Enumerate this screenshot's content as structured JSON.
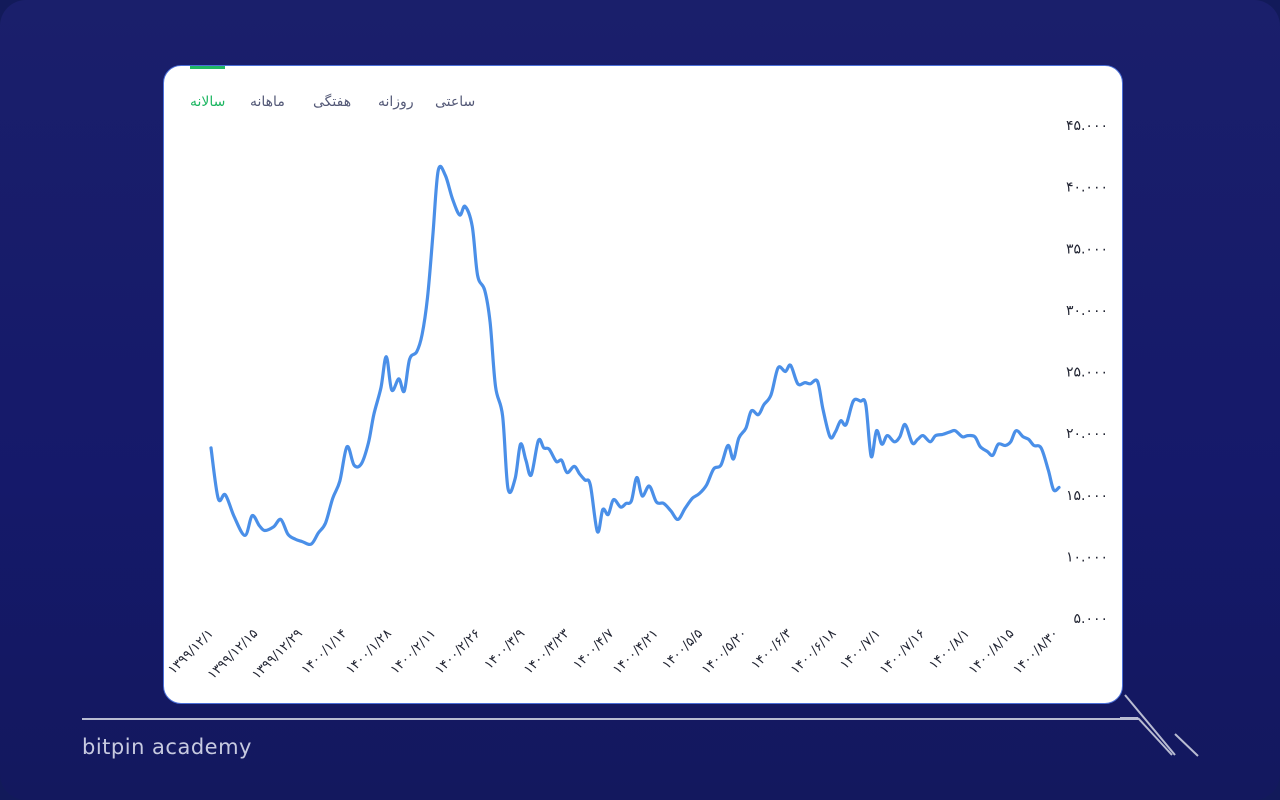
{
  "tabs": [
    {
      "label": "سالانه",
      "active": true
    },
    {
      "label": "ماهانه",
      "active": false
    },
    {
      "label": "هفتگی",
      "active": false
    },
    {
      "label": "روزانه",
      "active": false
    },
    {
      "label": "ساعتی",
      "active": false
    }
  ],
  "brand": "bitpin academy",
  "colors": {
    "background": "#121a5a",
    "card": "#ffffff",
    "line": "#4a8fe8",
    "active_tab": "#1fb763"
  },
  "chart_data": {
    "type": "line",
    "title": "",
    "xlabel": "",
    "ylabel": "",
    "ylim": [
      5000,
      45000
    ],
    "y_ticks": [
      {
        "value": 45000,
        "label": "۴۵.۰۰۰"
      },
      {
        "value": 40000,
        "label": "۴۰.۰۰۰"
      },
      {
        "value": 35000,
        "label": "۳۵.۰۰۰"
      },
      {
        "value": 30000,
        "label": "۳۰.۰۰۰"
      },
      {
        "value": 25000,
        "label": "۲۵.۰۰۰"
      },
      {
        "value": 20000,
        "label": "۲۰.۰۰۰"
      },
      {
        "value": 15000,
        "label": "۱۵.۰۰۰"
      },
      {
        "value": 10000,
        "label": "۱۰.۰۰۰"
      },
      {
        "value": 5000,
        "label": "۵.۰۰۰"
      }
    ],
    "x_labels": [
      "۱۳۹۹/۱۲/۱",
      "۱۳۹۹/۱۲/۱۵",
      "۱۳۹۹/۱۲/۲۹",
      "۱۴۰۰/۱/۱۴",
      "۱۴۰۰/۱/۲۸",
      "۱۴۰۰/۲/۱۱",
      "۱۴۰۰/۲/۲۶",
      "۱۴۰۰/۳/۹",
      "۱۴۰۰/۳/۲۳",
      "۱۴۰۰/۴/۷",
      "۱۴۰۰/۴/۲۱",
      "۱۴۰۰/۵/۵",
      "۱۴۰۰/۵/۲۰",
      "۱۴۰۰/۶/۳",
      "۱۴۰۰/۶/۱۸",
      "۱۴۰۰/۷/۱",
      "۱۴۰۰/۷/۱۶",
      "۱۴۰۰/۸/۱",
      "۱۴۰۰/۸/۱۵",
      "۱۴۰۰/۸/۳۰"
    ],
    "series": [
      {
        "values": [
          [
            0,
            18800
          ],
          [
            0.4,
            14700
          ],
          [
            0.8,
            15000
          ],
          [
            1.3,
            13200
          ],
          [
            1.9,
            11700
          ],
          [
            2.3,
            13300
          ],
          [
            2.7,
            12500
          ],
          [
            3.0,
            12100
          ],
          [
            3.5,
            12400
          ],
          [
            3.9,
            13000
          ],
          [
            4.3,
            11800
          ],
          [
            4.7,
            11400
          ],
          [
            5.1,
            11200
          ],
          [
            5.6,
            11000
          ],
          [
            6.0,
            11900
          ],
          [
            6.4,
            12700
          ],
          [
            6.8,
            14700
          ],
          [
            7.2,
            16100
          ],
          [
            7.6,
            18900
          ],
          [
            8.0,
            17400
          ],
          [
            8.4,
            17500
          ],
          [
            8.8,
            19200
          ],
          [
            9.1,
            21500
          ],
          [
            9.5,
            23700
          ],
          [
            9.8,
            26200
          ],
          [
            10.1,
            23500
          ],
          [
            10.5,
            24400
          ],
          [
            10.8,
            23400
          ],
          [
            11.1,
            26000
          ],
          [
            11.5,
            26600
          ],
          [
            11.8,
            28000
          ],
          [
            12.1,
            31000
          ],
          [
            12.4,
            36000
          ],
          [
            12.7,
            41300
          ],
          [
            13.1,
            40900
          ],
          [
            13.5,
            39000
          ],
          [
            13.9,
            37700
          ],
          [
            14.2,
            38400
          ],
          [
            14.6,
            36800
          ],
          [
            14.9,
            32800
          ],
          [
            15.3,
            31600
          ],
          [
            15.6,
            29000
          ],
          [
            15.9,
            23800
          ],
          [
            16.3,
            21400
          ],
          [
            16.6,
            15500
          ],
          [
            17.0,
            16300
          ],
          [
            17.3,
            19100
          ],
          [
            17.6,
            17800
          ],
          [
            17.9,
            16600
          ],
          [
            18.3,
            19400
          ],
          [
            18.6,
            18800
          ],
          [
            18.9,
            18700
          ],
          [
            19.3,
            17700
          ],
          [
            19.6,
            17800
          ],
          [
            19.9,
            16800
          ],
          [
            20.3,
            17300
          ],
          [
            20.6,
            16700
          ],
          [
            20.9,
            16200
          ],
          [
            21.2,
            15800
          ],
          [
            21.6,
            12000
          ],
          [
            21.9,
            13800
          ],
          [
            22.2,
            13400
          ],
          [
            22.5,
            14600
          ],
          [
            22.9,
            14000
          ],
          [
            23.2,
            14300
          ],
          [
            23.5,
            14500
          ],
          [
            23.8,
            16400
          ],
          [
            24.1,
            14900
          ],
          [
            24.5,
            15700
          ],
          [
            24.9,
            14400
          ],
          [
            25.3,
            14300
          ],
          [
            25.7,
            13700
          ],
          [
            26.1,
            13000
          ],
          [
            26.5,
            13900
          ],
          [
            26.9,
            14700
          ],
          [
            27.3,
            15100
          ],
          [
            27.7,
            15800
          ],
          [
            28.1,
            17100
          ],
          [
            28.5,
            17400
          ],
          [
            28.9,
            19000
          ],
          [
            29.2,
            17900
          ],
          [
            29.5,
            19600
          ],
          [
            29.9,
            20400
          ],
          [
            30.2,
            21800
          ],
          [
            30.6,
            21500
          ],
          [
            30.9,
            22300
          ],
          [
            31.3,
            23100
          ],
          [
            31.7,
            25300
          ],
          [
            32.1,
            25000
          ],
          [
            32.4,
            25500
          ],
          [
            32.8,
            24000
          ],
          [
            33.2,
            24100
          ],
          [
            33.5,
            24000
          ],
          [
            33.9,
            24200
          ],
          [
            34.2,
            22000
          ],
          [
            34.6,
            19700
          ],
          [
            34.9,
            20100
          ],
          [
            35.2,
            21000
          ],
          [
            35.5,
            20700
          ],
          [
            35.9,
            22600
          ],
          [
            36.3,
            22600
          ],
          [
            36.6,
            22300
          ],
          [
            36.9,
            18100
          ],
          [
            37.2,
            20200
          ],
          [
            37.5,
            19100
          ],
          [
            37.8,
            19800
          ],
          [
            38.2,
            19300
          ],
          [
            38.5,
            19700
          ],
          [
            38.8,
            20700
          ],
          [
            39.2,
            19200
          ],
          [
            39.5,
            19500
          ],
          [
            39.8,
            19800
          ],
          [
            40.2,
            19300
          ],
          [
            40.5,
            19800
          ],
          [
            40.9,
            19900
          ],
          [
            41.3,
            20100
          ],
          [
            41.6,
            20200
          ],
          [
            42.0,
            19700
          ],
          [
            42.3,
            19800
          ],
          [
            42.7,
            19700
          ],
          [
            43.0,
            18900
          ],
          [
            43.4,
            18500
          ],
          [
            43.7,
            18200
          ],
          [
            44.0,
            19100
          ],
          [
            44.4,
            19000
          ],
          [
            44.7,
            19300
          ],
          [
            45.0,
            20200
          ],
          [
            45.4,
            19700
          ],
          [
            45.7,
            19500
          ],
          [
            46.0,
            19000
          ],
          [
            46.4,
            18800
          ],
          [
            46.8,
            17000
          ],
          [
            47.1,
            15400
          ],
          [
            47.4,
            15600
          ]
        ]
      }
    ],
    "grid": false,
    "legend": "none"
  }
}
